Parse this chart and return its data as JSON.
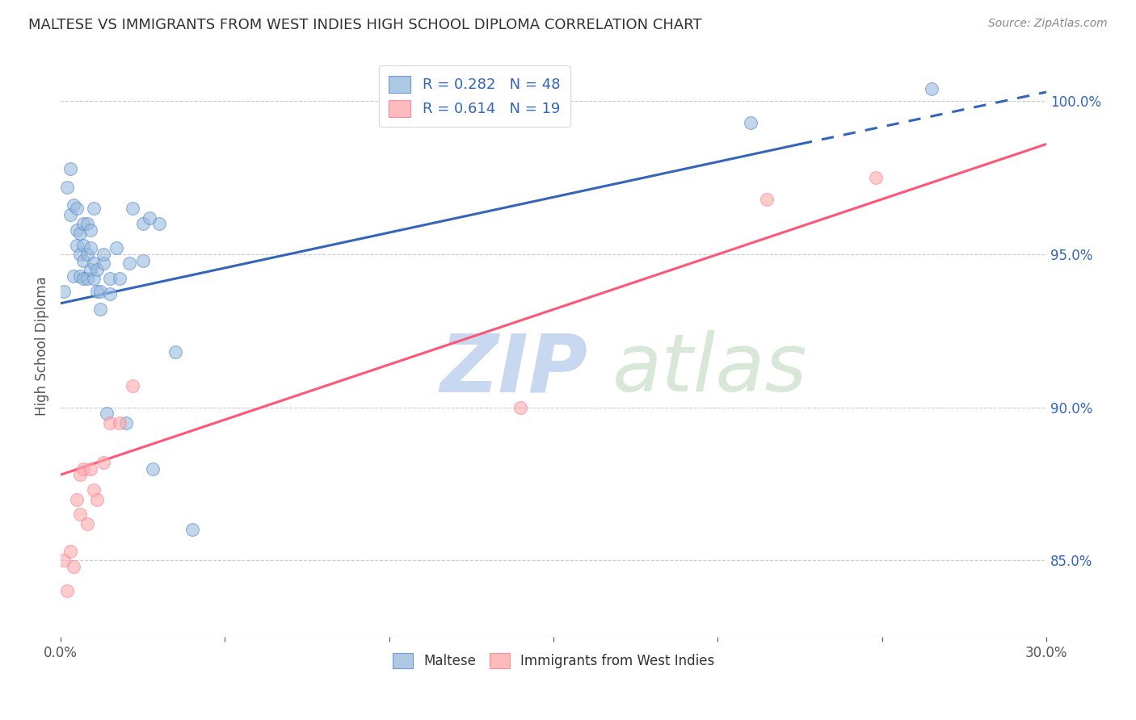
{
  "title": "MALTESE VS IMMIGRANTS FROM WEST INDIES HIGH SCHOOL DIPLOMA CORRELATION CHART",
  "source": "Source: ZipAtlas.com",
  "ylabel": "High School Diploma",
  "xlim": [
    0.0,
    0.3
  ],
  "ylim": [
    0.825,
    1.015
  ],
  "xticks": [
    0.0,
    0.05,
    0.1,
    0.15,
    0.2,
    0.25,
    0.3
  ],
  "xticklabels": [
    "0.0%",
    "",
    "",
    "",
    "",
    "",
    "30.0%"
  ],
  "yticks_right": [
    0.85,
    0.9,
    0.95,
    1.0
  ],
  "ytick_labels_right": [
    "85.0%",
    "90.0%",
    "95.0%",
    "100.0%"
  ],
  "blue_color": "#99BBDD",
  "pink_color": "#FFAAAA",
  "blue_edge_color": "#5588CC",
  "pink_edge_color": "#FF7799",
  "blue_line_color": "#3366BB",
  "pink_line_color": "#FF5577",
  "legend_blue_r": "R = 0.282",
  "legend_blue_n": "N = 48",
  "legend_pink_r": "R = 0.614",
  "legend_pink_n": "N = 19",
  "watermark_zip": "ZIP",
  "watermark_atlas": "atlas",
  "watermark_color_zip": "#C8D8F0",
  "watermark_color_atlas": "#D8E8D8",
  "blue_scatter_x": [
    0.001,
    0.002,
    0.003,
    0.003,
    0.004,
    0.004,
    0.005,
    0.005,
    0.005,
    0.006,
    0.006,
    0.006,
    0.007,
    0.007,
    0.007,
    0.007,
    0.008,
    0.008,
    0.008,
    0.009,
    0.009,
    0.009,
    0.01,
    0.01,
    0.01,
    0.011,
    0.011,
    0.012,
    0.012,
    0.013,
    0.013,
    0.014,
    0.015,
    0.015,
    0.017,
    0.018,
    0.02,
    0.021,
    0.022,
    0.025,
    0.025,
    0.027,
    0.028,
    0.03,
    0.035,
    0.04,
    0.21,
    0.265
  ],
  "blue_scatter_y": [
    0.938,
    0.972,
    0.963,
    0.978,
    0.943,
    0.966,
    0.953,
    0.958,
    0.965,
    0.943,
    0.95,
    0.957,
    0.942,
    0.948,
    0.953,
    0.96,
    0.942,
    0.95,
    0.96,
    0.945,
    0.952,
    0.958,
    0.942,
    0.947,
    0.965,
    0.938,
    0.945,
    0.932,
    0.938,
    0.947,
    0.95,
    0.898,
    0.937,
    0.942,
    0.952,
    0.942,
    0.895,
    0.947,
    0.965,
    0.96,
    0.948,
    0.962,
    0.88,
    0.96,
    0.918,
    0.86,
    0.993,
    1.004
  ],
  "pink_scatter_x": [
    0.001,
    0.002,
    0.003,
    0.004,
    0.005,
    0.006,
    0.006,
    0.007,
    0.008,
    0.009,
    0.01,
    0.011,
    0.013,
    0.015,
    0.018,
    0.022,
    0.14,
    0.215,
    0.248
  ],
  "pink_scatter_y": [
    0.85,
    0.84,
    0.853,
    0.848,
    0.87,
    0.865,
    0.878,
    0.88,
    0.862,
    0.88,
    0.873,
    0.87,
    0.882,
    0.895,
    0.895,
    0.907,
    0.9,
    0.968,
    0.975
  ],
  "blue_line_solid_x0": 0.0,
  "blue_line_solid_y0": 0.934,
  "blue_line_solid_x1": 0.225,
  "blue_line_solid_y1": 0.986,
  "blue_line_dash_x0": 0.225,
  "blue_line_dash_y0": 0.986,
  "blue_line_dash_x1": 0.3,
  "blue_line_dash_y1": 1.003,
  "pink_line_x0": 0.0,
  "pink_line_y0": 0.878,
  "pink_line_x1": 0.3,
  "pink_line_y1": 0.986
}
